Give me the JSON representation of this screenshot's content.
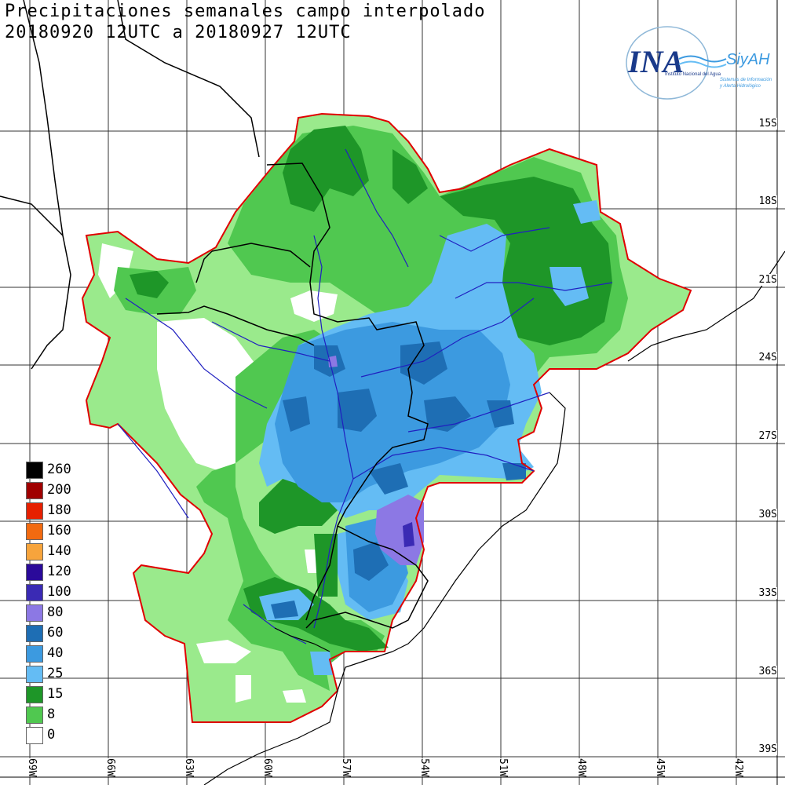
{
  "title": {
    "line1": "Precipitaciones semanales campo interpolado",
    "line2": "20180920 12UTC a 20180927 12UTC"
  },
  "logo": {
    "mark": "INA",
    "product": "SiyAH",
    "org": "Instituto Nacional del Agua",
    "tagline1": "Sistemas de Información",
    "tagline2": "y Alerta Hidrológico"
  },
  "axes": {
    "latitudes": [
      "15S",
      "18S",
      "21S",
      "24S",
      "27S",
      "30S",
      "33S",
      "36S",
      "39S"
    ],
    "longitudes": [
      "69W",
      "66W",
      "63W",
      "60W",
      "57W",
      "54W",
      "51W",
      "48W",
      "45W",
      "42W"
    ]
  },
  "legend": [
    {
      "label": "260",
      "color": "#000000"
    },
    {
      "label": "200",
      "color": "#a00000"
    },
    {
      "label": "180",
      "color": "#e62000"
    },
    {
      "label": "160",
      "color": "#f26a10"
    },
    {
      "label": "140",
      "color": "#f7a43c"
    },
    {
      "label": "120",
      "color": "#2a0a9a"
    },
    {
      "label": "100",
      "color": "#3a2ab4"
    },
    {
      "label": "80",
      "color": "#8c78e4"
    },
    {
      "label": "60",
      "color": "#1e6eb4"
    },
    {
      "label": "40",
      "color": "#3c9ae0"
    },
    {
      "label": "25",
      "color": "#64bcf4"
    },
    {
      "label": "15",
      "color": "#1e9628"
    },
    {
      "label": "8",
      "color": "#50c850"
    },
    {
      "label": "0",
      "color": "#ffffff"
    }
  ],
  "colors": {
    "light_green": "#9aea8c",
    "mid_green": "#50c850",
    "dark_green": "#1e9628",
    "light_blue": "#64bcf4",
    "mid_blue": "#3c9ae0",
    "dark_blue": "#1e6eb4",
    "violet": "#8c78e4",
    "deep_violet": "#3a2ab4",
    "basin_outline": "#e00000",
    "rivers": "#2020c0",
    "borders": "#000000"
  }
}
